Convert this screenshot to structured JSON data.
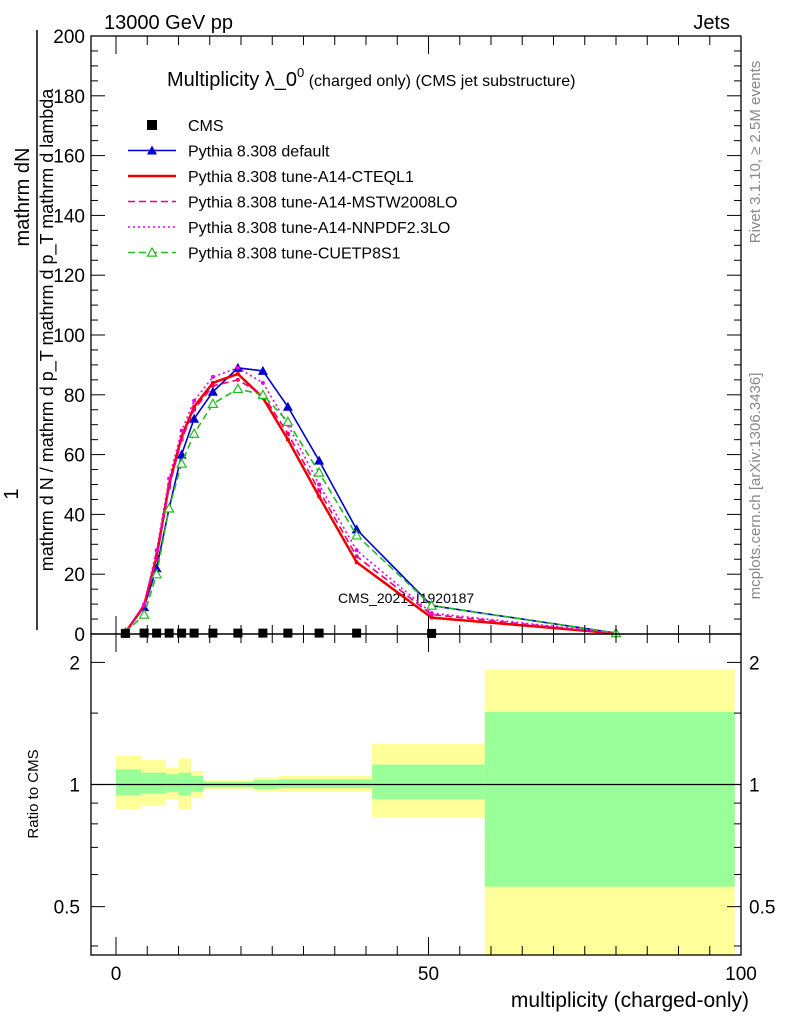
{
  "header": {
    "left": "13000 GeV pp",
    "right": "Jets"
  },
  "side_labels": {
    "rivet": "Rivet 3.1.10, ≥ 2.5M events",
    "mcplots": "mcplots.cern.ch [arXiv:1306.3436]"
  },
  "watermark": "CMS_2021_I1920187",
  "chart_data": {
    "type": "line",
    "title": "Multiplicity λ_0⁰ (charged only) (CMS jet substructure)",
    "title_main": "Multiplicity λ_0",
    "title_sup": "0",
    "title_extra": " (charged only) (CMS jet substructure)",
    "ylabel_top": "mathrm dN",
    "ylabel_main": "mathrm d N / mathrm d p",
    "ylabel_one": "1",
    "ylabel_text": "mathrm d N / mathrm d p_T mathrm d p_T mathrm d lambda",
    "xlabel": "multiplicity (charged-only)",
    "ratio_ylabel": "Ratio to CMS",
    "xlim": [
      -4,
      100
    ],
    "ylim": [
      0,
      200
    ],
    "ratio_ylim": [
      0.38,
      2.35
    ],
    "x_ticks": [
      "0",
      "50",
      "100"
    ],
    "y_ticks": [
      "0",
      "20",
      "40",
      "60",
      "80",
      "100",
      "120",
      "140",
      "160",
      "180",
      "200"
    ],
    "ratio_ticks": [
      "0.5",
      "1",
      "2"
    ],
    "cms": {
      "name": "CMS",
      "x": [
        1.5,
        4.5,
        6.5,
        8.5,
        10.5,
        12.5,
        15.5,
        19.5,
        23.5,
        27.5,
        32.5,
        38.5,
        50.5
      ],
      "values": [
        0.2,
        0.3,
        0.3,
        0.3,
        0.3,
        0.3,
        0.3,
        0.3,
        0.3,
        0.3,
        0.3,
        0.3,
        0.2
      ]
    },
    "series": [
      {
        "name": "Pythia 8.308 default",
        "color": "#0000cc",
        "style": "solid",
        "marker": "filled-triangle",
        "x": [
          1.5,
          4.5,
          6.5,
          8.5,
          10.5,
          12.5,
          15.5,
          19.5,
          23.5,
          27.5,
          32.5,
          38.5,
          50.5,
          80
        ],
        "values": [
          0.5,
          9,
          22,
          42,
          60,
          72,
          81,
          89,
          88,
          76,
          58,
          35,
          9.5,
          0.3
        ]
      },
      {
        "name": "Pythia 8.308 tune-A14-CTEQL1",
        "color": "#ee0000",
        "style": "solid",
        "marker": "none",
        "x": [
          1.5,
          4.5,
          6.5,
          8.5,
          10.5,
          12.5,
          15.5,
          19.5,
          23.5,
          27.5,
          32.5,
          38.5,
          50.5,
          80
        ],
        "values": [
          0.5,
          9.5,
          26,
          50,
          66,
          76,
          84,
          87,
          79,
          65,
          46,
          24,
          5.5,
          0.2
        ]
      },
      {
        "name": "Pythia 8.308 tune-A14-MSTW2008LO",
        "color": "#ee0077",
        "style": "dashed",
        "marker": "none",
        "x": [
          1.5,
          4.5,
          6.5,
          8.5,
          10.5,
          12.5,
          15.5,
          19.5,
          23.5,
          27.5,
          32.5,
          38.5,
          50.5,
          80
        ],
        "values": [
          0.5,
          9.5,
          25,
          49,
          65,
          75,
          83,
          85,
          80,
          67,
          48,
          26,
          6.5,
          0.2
        ]
      },
      {
        "name": "Pythia 8.308 tune-A14-NNPDF2.3LO",
        "color": "#ee00ee",
        "style": "dotted",
        "marker": "none",
        "x": [
          1.5,
          4.5,
          6.5,
          8.5,
          10.5,
          12.5,
          15.5,
          19.5,
          23.5,
          27.5,
          32.5,
          38.5,
          50.5,
          80
        ],
        "values": [
          0.5,
          10,
          28,
          52,
          68,
          78,
          86,
          89,
          84,
          70,
          50,
          28,
          7,
          0.3
        ]
      },
      {
        "name": "Pythia 8.308 tune-CUETP8S1",
        "color": "#22bb22",
        "style": "dashed",
        "marker": "open-triangle",
        "x": [
          1.5,
          4.5,
          6.5,
          8.5,
          10.5,
          12.5,
          15.5,
          19.5,
          23.5,
          27.5,
          32.5,
          38.5,
          50.5,
          80
        ],
        "values": [
          0.5,
          6.5,
          20,
          42,
          57,
          67,
          77,
          82,
          80,
          71,
          54,
          33,
          9.5,
          0.3
        ]
      }
    ],
    "ratio_bands": [
      {
        "x0": 0,
        "x1": 4,
        "stat": [
          0.94,
          1.09
        ],
        "total": [
          0.87,
          1.18
        ]
      },
      {
        "x0": 4,
        "x1": 8,
        "stat": [
          0.95,
          1.07
        ],
        "total": [
          0.89,
          1.15
        ]
      },
      {
        "x0": 8,
        "x1": 10,
        "stat": [
          0.96,
          1.06
        ],
        "total": [
          0.92,
          1.1
        ]
      },
      {
        "x0": 10,
        "x1": 12,
        "stat": [
          0.94,
          1.07
        ],
        "total": [
          0.87,
          1.16
        ]
      },
      {
        "x0": 12,
        "x1": 14,
        "stat": [
          0.96,
          1.05
        ],
        "total": [
          0.93,
          1.08
        ]
      },
      {
        "x0": 14,
        "x1": 22,
        "stat": [
          0.985,
          1.015
        ],
        "total": [
          0.975,
          1.025
        ]
      },
      {
        "x0": 22,
        "x1": 26,
        "stat": [
          0.975,
          1.025
        ],
        "total": [
          0.96,
          1.04
        ]
      },
      {
        "x0": 26,
        "x1": 41,
        "stat": [
          0.98,
          1.03
        ],
        "total": [
          0.96,
          1.05
        ]
      },
      {
        "x0": 41,
        "x1": 59,
        "stat": [
          0.92,
          1.12
        ],
        "total": [
          0.83,
          1.26
        ]
      },
      {
        "x0": 59,
        "x1": 99,
        "stat": [
          0.56,
          1.51
        ],
        "total": [
          0.37,
          1.92
        ]
      }
    ],
    "band_colors": {
      "stat": "#99ff99",
      "total": "#ffff99"
    }
  }
}
